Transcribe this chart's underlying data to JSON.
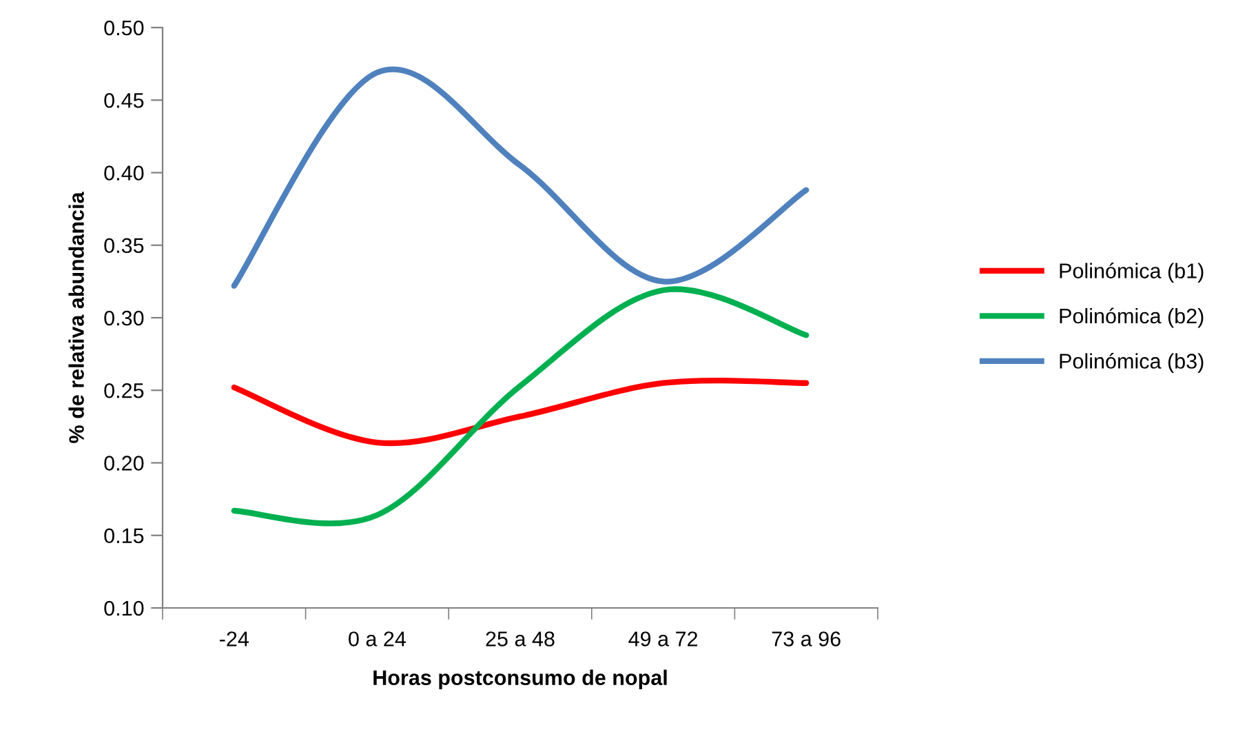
{
  "chart_data": {
    "type": "line",
    "xlabel": "Horas postconsumo de nopal",
    "ylabel": "% de relativa abundancia",
    "categories": [
      "-24",
      "0 a 24",
      "25 a 48",
      "49 a 72",
      "73 a 96"
    ],
    "series": [
      {
        "name": "Polinómica (b1)",
        "color": "#ff0000",
        "values": [
          0.252,
          0.214,
          0.232,
          0.255,
          0.255
        ]
      },
      {
        "name": "Polinómica (b2)",
        "color": "#00b050",
        "values": [
          0.167,
          0.164,
          0.253,
          0.319,
          0.288
        ]
      },
      {
        "name": "Polinómica (b3)",
        "color": "#4f81bd",
        "values": [
          0.322,
          0.469,
          0.405,
          0.325,
          0.388
        ]
      }
    ],
    "ylim": [
      0.1,
      0.5
    ],
    "yticks": [
      {
        "value": 0.1,
        "label": "0.10"
      },
      {
        "value": 0.15,
        "label": "0.15"
      },
      {
        "value": 0.2,
        "label": "0.20"
      },
      {
        "value": 0.25,
        "label": "0.25"
      },
      {
        "value": 0.3,
        "label": "0.30"
      },
      {
        "value": 0.35,
        "label": "0.35"
      },
      {
        "value": 0.4,
        "label": "0.40"
      },
      {
        "value": 0.45,
        "label": "0.45"
      },
      {
        "value": 0.5,
        "label": "0.50"
      }
    ],
    "grid": false,
    "legend": "right",
    "marker": "none",
    "line_style": "solid"
  }
}
